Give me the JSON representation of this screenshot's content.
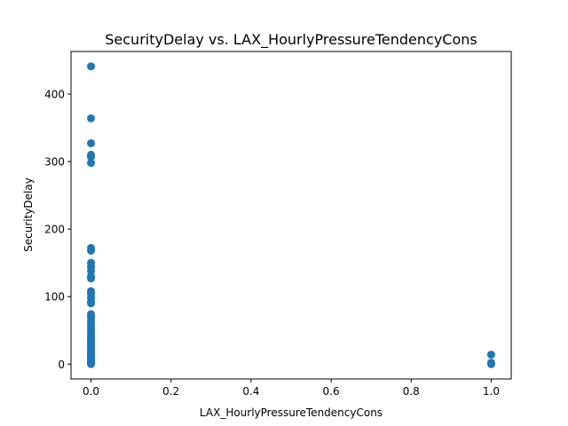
{
  "chart_data": {
    "type": "scatter",
    "title": "SecurityDelay vs. LAX_HourlyPressureTendencyCons",
    "xlabel": "LAX_HourlyPressureTendencyCons",
    "ylabel": "SecurityDelay",
    "xlim": [
      -0.05,
      1.05
    ],
    "ylim": [
      -22,
      463
    ],
    "xticks": [
      0.0,
      0.2,
      0.4,
      0.6,
      0.8,
      1.0
    ],
    "xtick_labels": [
      "0.0",
      "0.2",
      "0.4",
      "0.6",
      "0.8",
      "1.0"
    ],
    "yticks": [
      0,
      100,
      200,
      300,
      400
    ],
    "ytick_labels": [
      "0",
      "100",
      "200",
      "300",
      "400"
    ],
    "grid": false,
    "marker_color": "#1f77b4",
    "points": [
      {
        "x": 0,
        "y": 441
      },
      {
        "x": 0,
        "y": 364
      },
      {
        "x": 0,
        "y": 327
      },
      {
        "x": 0,
        "y": 310
      },
      {
        "x": 0,
        "y": 307
      },
      {
        "x": 0,
        "y": 298
      },
      {
        "x": 0,
        "y": 172
      },
      {
        "x": 0,
        "y": 168
      },
      {
        "x": 0,
        "y": 150
      },
      {
        "x": 0,
        "y": 144
      },
      {
        "x": 0,
        "y": 138
      },
      {
        "x": 0,
        "y": 130
      },
      {
        "x": 0,
        "y": 127
      },
      {
        "x": 0,
        "y": 108
      },
      {
        "x": 0,
        "y": 104
      },
      {
        "x": 0,
        "y": 98
      },
      {
        "x": 0,
        "y": 92
      },
      {
        "x": 0,
        "y": 90
      },
      {
        "x": 0,
        "y": 74
      },
      {
        "x": 0,
        "y": 70
      },
      {
        "x": 0,
        "y": 65
      },
      {
        "x": 0,
        "y": 60
      },
      {
        "x": 0,
        "y": 55
      },
      {
        "x": 0,
        "y": 50
      },
      {
        "x": 0,
        "y": 46
      },
      {
        "x": 0,
        "y": 42
      },
      {
        "x": 0,
        "y": 38
      },
      {
        "x": 0,
        "y": 35
      },
      {
        "x": 0,
        "y": 32
      },
      {
        "x": 0,
        "y": 29
      },
      {
        "x": 0,
        "y": 26
      },
      {
        "x": 0,
        "y": 23
      },
      {
        "x": 0,
        "y": 20
      },
      {
        "x": 0,
        "y": 18
      },
      {
        "x": 0,
        "y": 16
      },
      {
        "x": 0,
        "y": 14
      },
      {
        "x": 0,
        "y": 12
      },
      {
        "x": 0,
        "y": 10
      },
      {
        "x": 0,
        "y": 8
      },
      {
        "x": 0,
        "y": 6
      },
      {
        "x": 0,
        "y": 5
      },
      {
        "x": 0,
        "y": 4
      },
      {
        "x": 0,
        "y": 3
      },
      {
        "x": 0,
        "y": 2
      },
      {
        "x": 0,
        "y": 1
      },
      {
        "x": 0,
        "y": 0
      },
      {
        "x": 1,
        "y": 14
      },
      {
        "x": 1,
        "y": 2
      },
      {
        "x": 1,
        "y": 1
      },
      {
        "x": 1,
        "y": 0
      }
    ]
  }
}
